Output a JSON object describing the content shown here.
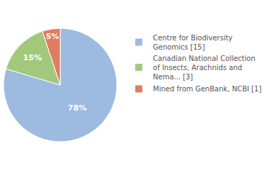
{
  "chart_data": {
    "type": "pie",
    "categories": [
      "Centre for Biodiversity Genomics [15]",
      "Canadian National Collection of Insects, Arachnids and Nema... [3]",
      "Mined from GenBank, NCBI [1]"
    ],
    "values": [
      78,
      15,
      5
    ],
    "value_labels": [
      "78%",
      "15%",
      "5%"
    ],
    "colors": [
      "#9dbae1",
      "#a2c97b",
      "#e07c62"
    ],
    "data_labels": true,
    "legend": "top-right"
  }
}
